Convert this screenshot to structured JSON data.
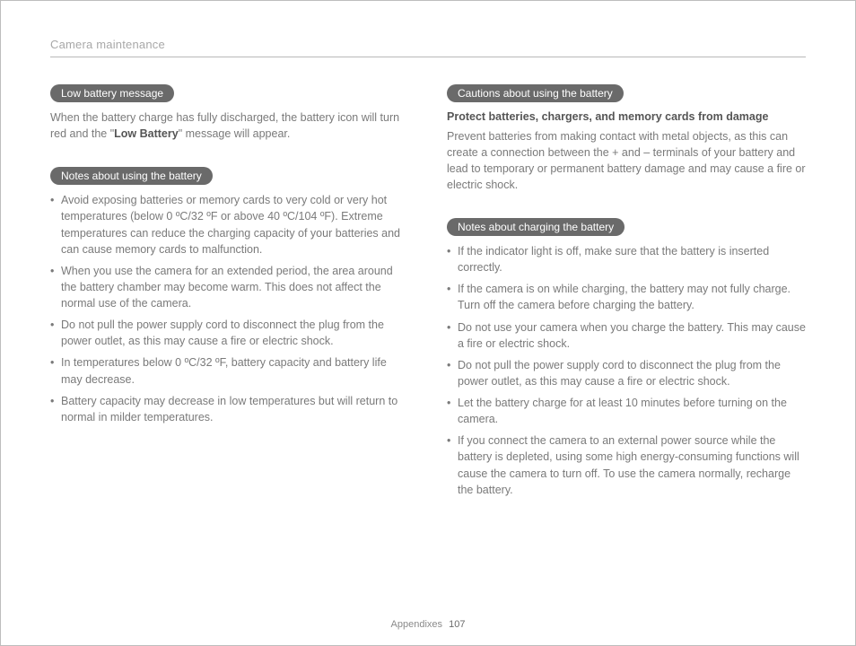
{
  "header": {
    "title": "Camera maintenance"
  },
  "left": {
    "section1": {
      "pill": "Low battery message",
      "text_pre": "When the battery charge has fully discharged, the battery icon will turn red and the \"",
      "text_bold": "Low Battery",
      "text_post": "\" message will appear."
    },
    "section2": {
      "pill": "Notes about using the battery",
      "bullets": [
        "Avoid exposing batteries or memory cards to very cold or very hot temperatures (below 0 ºC/32 ºF or above 40 ºC/104 ºF). Extreme temperatures can reduce the charging capacity of your batteries and can cause memory cards to malfunction.",
        "When you use the camera for an extended period, the area around the battery chamber may become warm. This does not affect the normal use of the camera.",
        "Do not pull the power supply cord to disconnect the plug from the power outlet, as this may cause a fire or electric shock.",
        "In temperatures below 0 ºC/32 ºF, battery capacity and battery life may decrease.",
        "Battery capacity may decrease in low temperatures but will return to normal in milder temperatures."
      ]
    }
  },
  "right": {
    "section1": {
      "pill": "Cautions about using the battery",
      "subhead": "Protect batteries, chargers, and memory cards from damage",
      "text": "Prevent batteries from making contact with metal objects, as this can create a connection between the + and – terminals of your battery and lead to temporary or permanent battery damage and may cause a fire or electric shock."
    },
    "section2": {
      "pill": "Notes about charging the battery",
      "bullets": [
        "If the indicator light is off, make sure that the battery is inserted correctly.",
        "If the camera is on while charging, the battery may not fully charge. Turn off the camera before charging the battery.",
        "Do not use your camera when you charge the battery. This may cause a fire or electric shock.",
        "Do not pull the power supply cord to disconnect the plug from the power outlet, as this may cause a fire or electric shock.",
        "Let the battery charge for at least 10 minutes before turning on the camera.",
        "If you connect the camera to an external power source while the battery is depleted, using some high energy-consuming functions will cause the camera to turn off. To use the camera normally, recharge the battery."
      ]
    }
  },
  "footer": {
    "label": "Appendixes",
    "page": "107"
  },
  "colors": {
    "pill_bg": "#6a6a6a",
    "pill_text": "#ffffff",
    "body_text": "#7a7a7a",
    "header_text": "#a8a8a8",
    "rule": "#b8b8b8",
    "bold_text": "#555555"
  }
}
